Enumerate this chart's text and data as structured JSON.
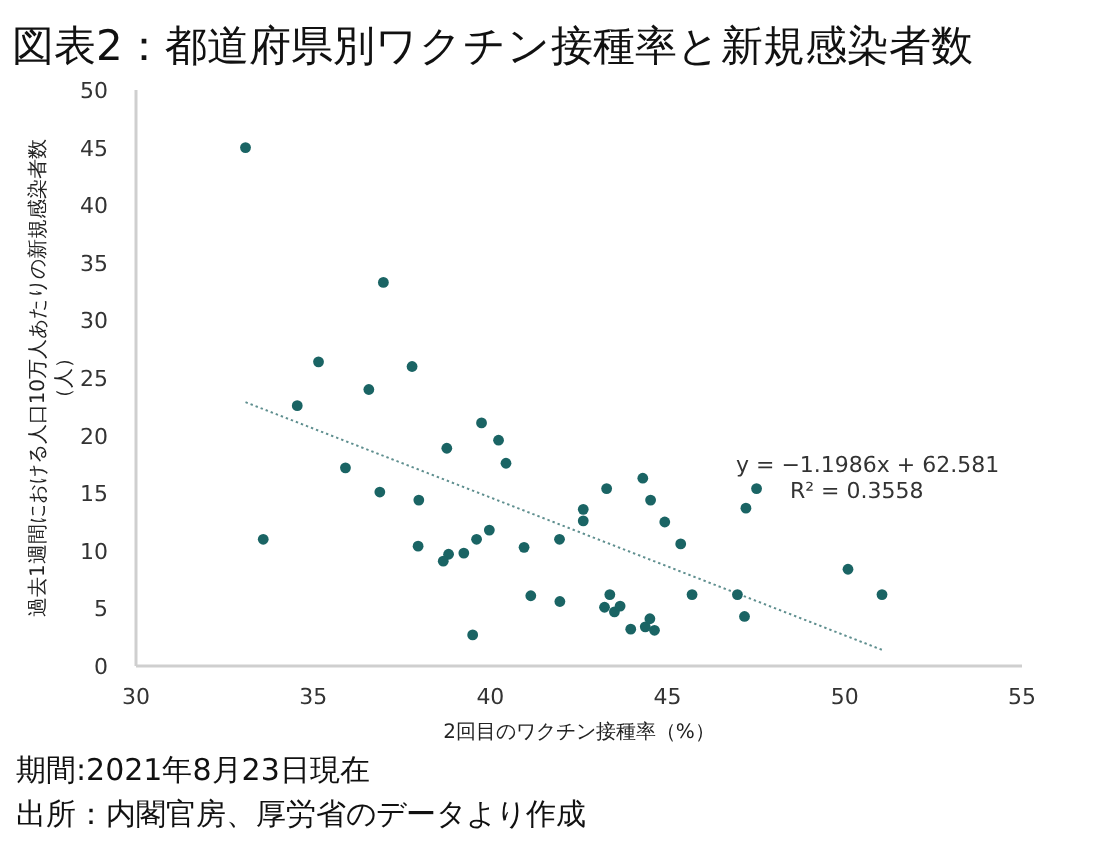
{
  "chart_data": {
    "type": "scatter",
    "title": "図表2：都道府県別ワクチン接種率と新規感染者数",
    "xlabel": "2回目のワクチン接種率（%）",
    "ylabel": "過去1週間における人口10万人あたりの新規感染者数（人）",
    "annotations": [
      "y = −1.1986x + 62.581",
      "R² = 0.3558",
      "期間:2021年8月23日現在",
      "出所：内閣官房、厚労省のデータより作成"
    ],
    "xlim": [
      30,
      55
    ],
    "xticks": [
      30,
      35,
      40,
      45,
      50,
      55
    ],
    "ylim": [
      0,
      50
    ],
    "yticks": [
      0,
      5,
      10,
      15,
      20,
      25,
      30,
      35,
      40,
      45,
      50
    ],
    "grid": false,
    "marker": "circle",
    "series": [
      {
        "color": "#1a6464",
        "x": [
          33.09,
          36.98,
          35.15,
          37.79,
          36.57,
          34.55,
          39.75,
          40.23,
          38.77,
          40.44,
          35.91,
          36.88,
          37.98,
          33.59,
          37.96,
          39.97,
          39.61,
          40.95,
          39.25,
          38.82,
          38.67,
          41.95,
          42.62,
          42.62,
          43.28,
          41.14,
          41.96,
          39.5,
          43.22,
          43.37,
          43.5,
          43.66,
          44.3,
          44.52,
          44.92,
          45.37,
          45.69,
          46.97,
          47.17,
          47.21,
          47.51,
          50.09,
          51.05,
          43.96,
          44.37,
          44.5,
          44.63
        ],
        "values": [
          45.0,
          33.3,
          26.4,
          26.0,
          24.0,
          22.6,
          21.1,
          19.6,
          18.9,
          17.6,
          17.2,
          15.1,
          14.4,
          11.0,
          10.4,
          11.8,
          11.0,
          10.3,
          9.8,
          9.7,
          9.1,
          11.0,
          12.6,
          13.6,
          15.4,
          6.1,
          5.6,
          2.7,
          5.1,
          6.2,
          4.7,
          5.2,
          16.3,
          14.4,
          12.5,
          10.6,
          6.2,
          6.2,
          4.3,
          13.7,
          15.4,
          8.4,
          6.2,
          3.2,
          3.4,
          4.1,
          3.1
        ]
      },
      {
        "type": "line",
        "color": "#5f8f8f",
        "line_style": "dotted",
        "marker": "none",
        "x": [
          33.09,
          51.05
        ],
        "values": [
          22.9,
          1.4
        ]
      }
    ]
  }
}
